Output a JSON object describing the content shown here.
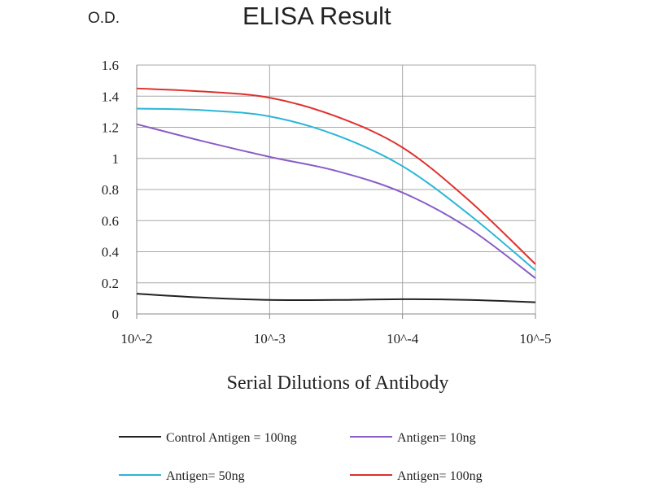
{
  "chart_data": {
    "type": "line",
    "title": "ELISA Result",
    "ylabel": "O.D.",
    "xlabel": "Serial Dilutions of Antibody",
    "x": [
      "10^-2",
      "10^-3",
      "10^-4",
      "10^-5"
    ],
    "ylim": [
      0,
      1.6
    ],
    "yticks": [
      "0",
      "0.2",
      "0.4",
      "0.6",
      "0.8",
      "1",
      "1.2",
      "1.4",
      "1.6"
    ],
    "grid": true,
    "legend_position": "bottom",
    "series": [
      {
        "name": "Control Antigen = 100ng",
        "color": "#222222",
        "points": [
          [
            0,
            0.13
          ],
          [
            0.5,
            0.105
          ],
          [
            1,
            0.09
          ],
          [
            1.5,
            0.09
          ],
          [
            2,
            0.095
          ],
          [
            2.5,
            0.09
          ],
          [
            3,
            0.075
          ]
        ]
      },
      {
        "name": "Antigen= 10ng",
        "color": "#8a5cc7",
        "points": [
          [
            0,
            1.22
          ],
          [
            0.5,
            1.11
          ],
          [
            1,
            1.01
          ],
          [
            1.5,
            0.92
          ],
          [
            2,
            0.78
          ],
          [
            2.5,
            0.55
          ],
          [
            3,
            0.23
          ]
        ]
      },
      {
        "name": "Antigen= 50ng",
        "color": "#2bb6d6",
        "points": [
          [
            0,
            1.32
          ],
          [
            0.5,
            1.31
          ],
          [
            1,
            1.27
          ],
          [
            1.5,
            1.15
          ],
          [
            2,
            0.95
          ],
          [
            2.5,
            0.64
          ],
          [
            3,
            0.28
          ]
        ]
      },
      {
        "name": "Antigen= 100ng",
        "color": "#e0302e",
        "points": [
          [
            0,
            1.45
          ],
          [
            0.5,
            1.43
          ],
          [
            1,
            1.39
          ],
          [
            1.5,
            1.27
          ],
          [
            2,
            1.07
          ],
          [
            2.5,
            0.73
          ],
          [
            3,
            0.32
          ]
        ]
      }
    ]
  }
}
